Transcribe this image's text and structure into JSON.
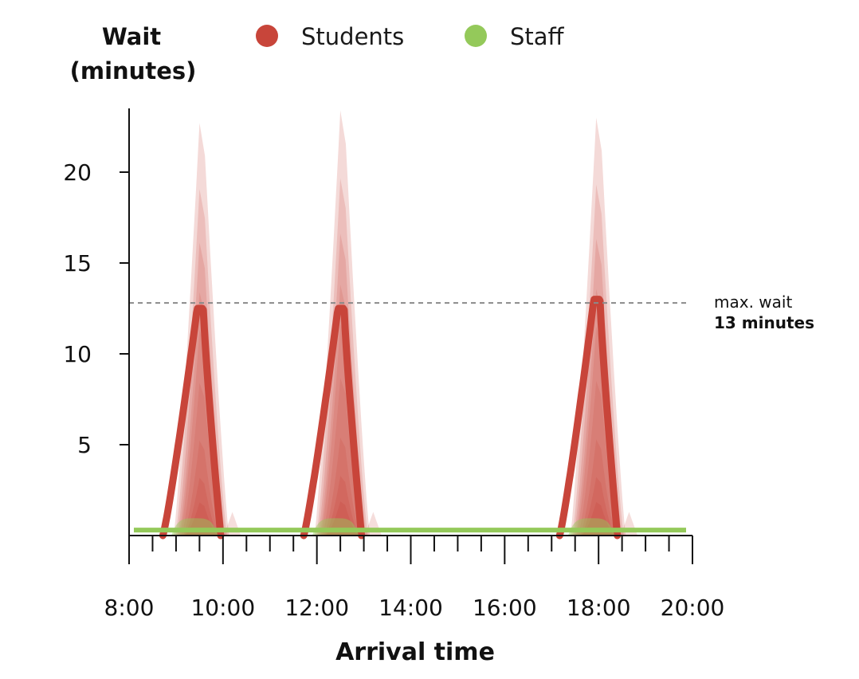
{
  "chart_data": {
    "type": "area",
    "ylabel_line1": "Wait",
    "ylabel_line2": "(minutes)",
    "xlabel": "Arrival time",
    "legend": [
      {
        "name": "Students",
        "color": "#c8453a"
      },
      {
        "name": "Staff",
        "color": "#94c95a"
      }
    ],
    "x_ticks": [
      "8:00",
      "10:00",
      "12:00",
      "14:00",
      "16:00",
      "18:00",
      "20:00"
    ],
    "x_range_hours": [
      8,
      20
    ],
    "y_ticks": [
      5,
      10,
      15,
      20
    ],
    "ylim": [
      0,
      22
    ],
    "max_wait": {
      "value": 12.8,
      "label_line1": "max. wait",
      "label_line2": "13 minutes"
    },
    "students_median_peaks": [
      {
        "time_hours": 9.5,
        "wait": 12.5
      },
      {
        "time_hours": 12.5,
        "wait": 12.5
      },
      {
        "time_hours": 17.95,
        "wait": 13.0
      }
    ],
    "students_band_max_peaks": [
      {
        "time_hours": 9.5,
        "wait": 22.7
      },
      {
        "time_hours": 12.5,
        "wait": 23.4
      },
      {
        "time_hours": 17.95,
        "wait": 23.0
      }
    ],
    "staff_wait": 0.3
  }
}
